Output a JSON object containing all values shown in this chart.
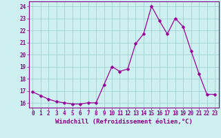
{
  "x": [
    0,
    1,
    2,
    3,
    4,
    5,
    6,
    7,
    8,
    9,
    10,
    11,
    12,
    13,
    14,
    15,
    16,
    17,
    18,
    19,
    20,
    21,
    22,
    23
  ],
  "y": [
    16.9,
    16.6,
    16.3,
    16.1,
    16.0,
    15.9,
    15.9,
    16.0,
    16.0,
    17.5,
    19.0,
    18.6,
    18.8,
    20.9,
    21.7,
    24.0,
    22.8,
    21.7,
    23.0,
    22.3,
    20.3,
    18.4,
    16.7,
    16.7
  ],
  "line_color": "#990099",
  "marker": "D",
  "marker_size": 2.5,
  "bg_color": "#cff0f0",
  "grid_color": "#99cccc",
  "ylabel_values": [
    16,
    17,
    18,
    19,
    20,
    21,
    22,
    23,
    24
  ],
  "ylim": [
    15.6,
    24.4
  ],
  "xlim": [
    -0.5,
    23.5
  ],
  "xlabel": "Windchill (Refroidissement éolien,°C)",
  "xlabel_color": "#880088",
  "tick_color": "#880088",
  "axis_fontsize": 5.5,
  "xlabel_fontsize": 6.5
}
